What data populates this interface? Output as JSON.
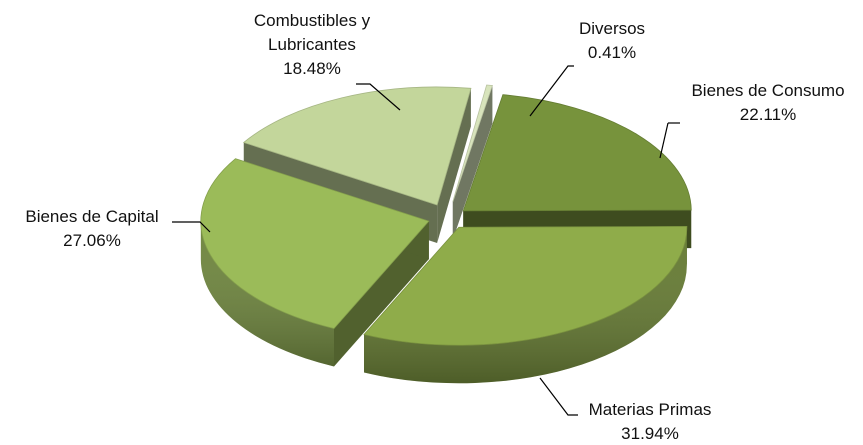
{
  "chart_data": {
    "type": "pie",
    "style": "3d-exploded",
    "legend": "none",
    "slices": [
      {
        "label": "Bienes de Consumo",
        "value": 22.11,
        "value_label": "22.11%",
        "color": "#77933c"
      },
      {
        "label": "Materias Primas",
        "value": 31.94,
        "value_label": "31.94%",
        "color": "#8fac4a"
      },
      {
        "label": "Bienes de Capital",
        "value": 27.06,
        "value_label": "27.06%",
        "color": "#9bbb59"
      },
      {
        "label": "Combustibles y Lubricantes",
        "value": 18.48,
        "value_label": "18.48%",
        "color": "#c3d69b"
      },
      {
        "label": "Diversos",
        "value": 0.41,
        "value_label": "0.41%",
        "color": "#d8e4bc"
      }
    ],
    "label_lines": [
      [
        "Bienes de Consumo",
        "22.11%"
      ],
      [
        "Materias Primas",
        "31.94%"
      ],
      [
        "Bienes de Capital",
        "27.06%"
      ],
      [
        "Combustibles y",
        "Lubricantes",
        "18.48%"
      ],
      [
        "Diversos",
        "0.41%"
      ]
    ]
  }
}
